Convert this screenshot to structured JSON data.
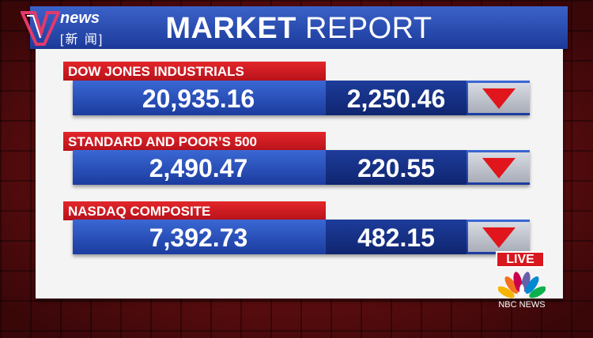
{
  "logo": {
    "brand": "news",
    "chinese": "新 闻"
  },
  "header": {
    "title_bold": "MARKET",
    "title_light": "REPORT"
  },
  "rows": [
    {
      "name": "DOW JONES INDUSTRIALS",
      "value": "20,935.16",
      "change": "2,250.46"
    },
    {
      "name": "STANDARD AND POOR’S 500",
      "value": "2,490.47",
      "change": "220.55"
    },
    {
      "name": "NASDAQ COMPOSITE",
      "value": "7,392.73",
      "change": "482.15"
    }
  ],
  "live": "LIVE",
  "network": "NBC NEWS"
}
